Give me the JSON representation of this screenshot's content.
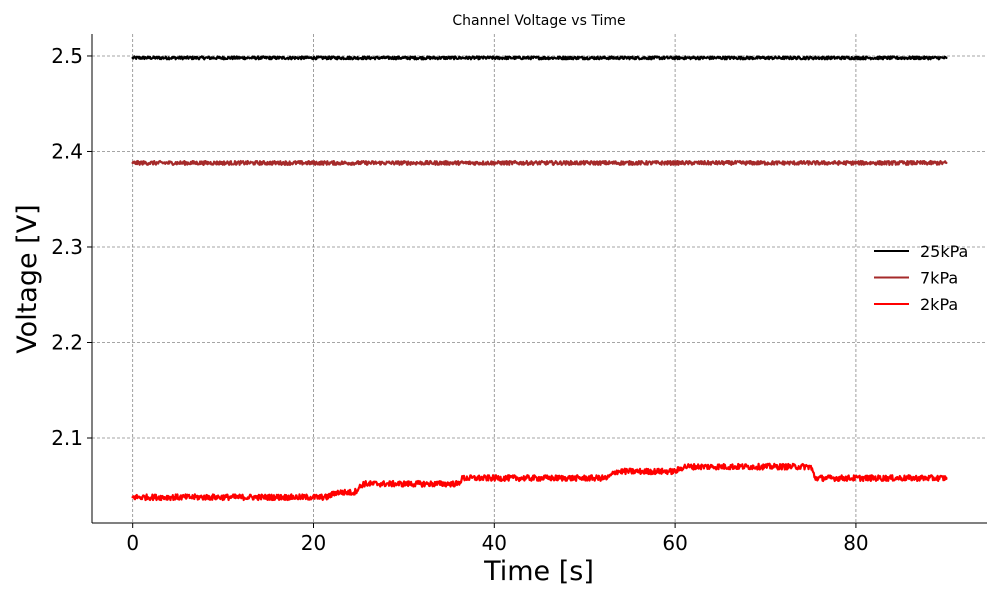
{
  "chart_data": {
    "type": "line",
    "title": "Channel Voltage vs Time",
    "xlabel": "Time [s]",
    "ylabel": "Voltage [V]",
    "xlim": [
      -4.5,
      94.5
    ],
    "ylim": [
      2.011,
      2.523
    ],
    "xticks": [
      0,
      20,
      40,
      60,
      80
    ],
    "yticks": [
      2.1,
      2.2,
      2.3,
      2.4,
      2.5
    ],
    "xtick_labels": [
      "0",
      "20",
      "40",
      "60",
      "80"
    ],
    "ytick_labels": [
      "2.1",
      "2.2",
      "2.3",
      "2.4",
      "2.5"
    ],
    "grid": true,
    "legend_position": "right",
    "series": [
      {
        "name": "25kPa",
        "color": "#000000",
        "x": [
          0,
          10,
          20,
          30,
          40,
          50,
          60,
          70,
          80,
          90
        ],
        "y": [
          2.498,
          2.498,
          2.498,
          2.498,
          2.498,
          2.498,
          2.498,
          2.498,
          2.498,
          2.498
        ],
        "noise": 0.003
      },
      {
        "name": "7kPa",
        "color": "#a52a2a",
        "x": [
          0,
          10,
          20,
          30,
          40,
          50,
          60,
          70,
          80,
          90
        ],
        "y": [
          2.388,
          2.388,
          2.388,
          2.388,
          2.388,
          2.388,
          2.388,
          2.388,
          2.388,
          2.388
        ],
        "noise": 0.004
      },
      {
        "name": "2kPa",
        "color": "#ff0000",
        "x": [
          0,
          21.5,
          22.5,
          24.5,
          25.5,
          36,
          36.5,
          52.5,
          53.5,
          60,
          61,
          75,
          75.5,
          90
        ],
        "y": [
          2.038,
          2.038,
          2.043,
          2.043,
          2.052,
          2.052,
          2.058,
          2.058,
          2.065,
          2.065,
          2.07,
          2.07,
          2.058,
          2.058
        ],
        "noise": 0.006
      }
    ]
  }
}
